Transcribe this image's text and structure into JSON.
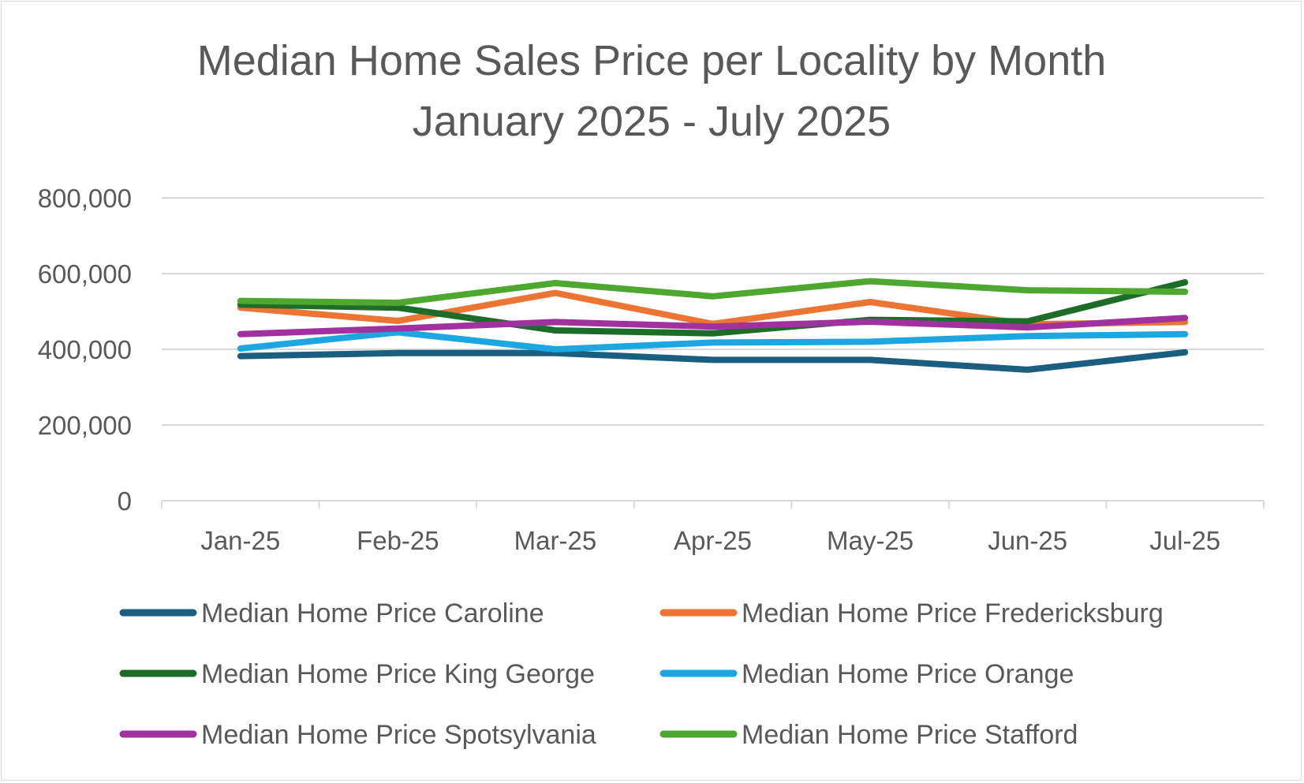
{
  "chart_data": {
    "type": "line",
    "title": "Median Home Sales Price per Locality by Month",
    "subtitle": "January 2025 - July 2025",
    "xlabel": "",
    "ylabel": "",
    "categories": [
      "Jan-25",
      "Feb-25",
      "Mar-25",
      "Apr-25",
      "May-25",
      "Jun-25",
      "Jul-25"
    ],
    "ylim": [
      0,
      800000
    ],
    "y_ticks": [
      "0",
      "200,000",
      "400,000",
      "600,000",
      "800,000"
    ],
    "grid": true,
    "legend_position": "bottom",
    "series": [
      {
        "name": "Median Home Price Caroline",
        "color": "#1b5f80",
        "values": [
          382000,
          390000,
          390000,
          372000,
          372000,
          346000,
          392000
        ]
      },
      {
        "name": "Median Home Price Fredericksburg",
        "color": "#ed7533",
        "values": [
          510000,
          475000,
          549000,
          467000,
          525000,
          466000,
          472000
        ]
      },
      {
        "name": "Median Home Price King George",
        "color": "#1d6d2a",
        "values": [
          518000,
          510000,
          450000,
          442000,
          478000,
          474000,
          577000
        ]
      },
      {
        "name": "Median Home Price Orange",
        "color": "#1ea6e0",
        "values": [
          402000,
          445000,
          400000,
          418000,
          420000,
          435000,
          440000
        ]
      },
      {
        "name": "Median Home Price Spotsylvania",
        "color": "#a0319e",
        "values": [
          440000,
          455000,
          472000,
          460000,
          473000,
          458000,
          483000
        ]
      },
      {
        "name": "Median Home Price Stafford",
        "color": "#4ea72e",
        "values": [
          528000,
          523000,
          575000,
          540000,
          580000,
          556000,
          552000
        ]
      }
    ]
  },
  "colors": {
    "text": "#595959",
    "gridline": "#d9d9d9",
    "axis": "#d9d9d9",
    "background": "#ffffff",
    "border": "#d9d9d9"
  }
}
